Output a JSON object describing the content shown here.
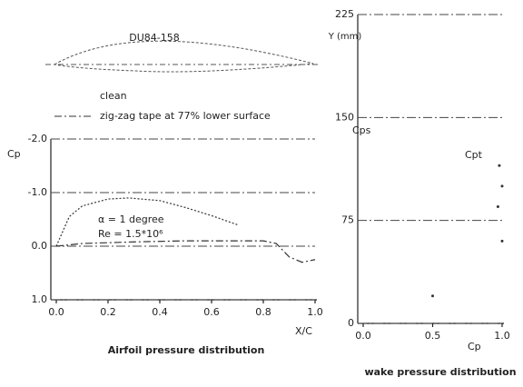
{
  "chart_data": [
    {
      "type": "line",
      "title": "Airfoil pressure distribution",
      "airfoil_label": "DU84-158",
      "x_label": "X/C",
      "y_label": "Cp",
      "annotations": [
        "α = 1 degree",
        "Re = 1.5*10⁶"
      ],
      "series": [
        {
          "name": "clean",
          "color": "#333333",
          "dash": "2 2",
          "x": [
            0,
            0.05,
            0.1,
            0.2,
            0.28,
            0.4,
            0.5,
            0.6,
            0.7
          ],
          "values": [
            0,
            -0.55,
            -0.75,
            -0.88,
            -0.9,
            -0.85,
            -0.72,
            -0.57,
            -0.4
          ]
        },
        {
          "name": "zig-zag tape at 77% lower surface",
          "color": "#333333",
          "dash": "8 3 2 3",
          "x": [
            0,
            0.1,
            0.3,
            0.5,
            0.7,
            0.8,
            0.85,
            0.9,
            0.95,
            1.0
          ],
          "values": [
            0,
            -0.05,
            -0.08,
            -0.1,
            -0.1,
            -0.1,
            -0.05,
            0.2,
            0.3,
            0.25
          ]
        }
      ],
      "xlim": [
        0,
        1
      ],
      "ylim": [
        1,
        -2
      ],
      "xticks": [
        {
          "value": 0,
          "label": "0.0"
        },
        0.2,
        0.4,
        0.6,
        0.8,
        {
          "value": 1,
          "label": "1.0"
        }
      ],
      "yticks": [
        {
          "value": -2,
          "label": "-2.0"
        },
        {
          "value": -1,
          "label": "-1.0"
        },
        {
          "value": 0,
          "label": "0.0"
        },
        {
          "value": 1,
          "label": "1.0"
        }
      ],
      "grid": true
    },
    {
      "type": "scatter",
      "title": "wake pressure distribution",
      "x_label": "Cp",
      "y_label": "Y (mm)",
      "annotations": [
        "Cps",
        "Cpt"
      ],
      "x": [
        0.98,
        1.0,
        0.97,
        1.0,
        0.5
      ],
      "values": [
        115,
        100,
        85,
        60,
        20
      ],
      "color": "#333333",
      "xlim": [
        0,
        1
      ],
      "ylim": [
        0,
        225
      ],
      "xticks": [
        {
          "value": 0,
          "label": "0.0"
        },
        0.5,
        {
          "value": 1,
          "label": "1.0"
        }
      ],
      "yticks": [
        0,
        75,
        150,
        225
      ],
      "grid": true
    }
  ]
}
